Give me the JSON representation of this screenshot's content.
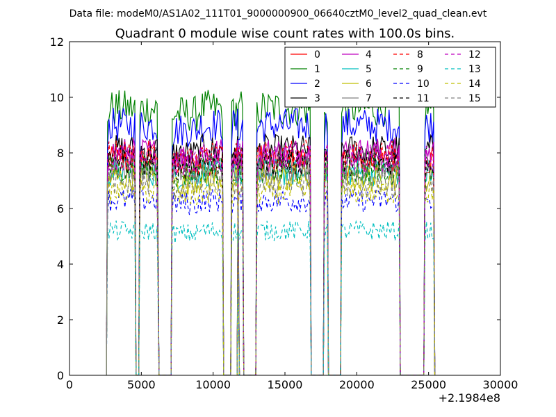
{
  "figure": {
    "suptitle": "Data file: modeM0/AS1A02_111T01_9000000900_06640cztM0_level2_quad_clean.evt",
    "title": "Quadrant 0 module wise count rates with 100.0s bins.",
    "offset_text": "+2.1984e8"
  },
  "chart_data": {
    "type": "line",
    "title": "Quadrant 0 module wise count rates with 100.0s bins.",
    "xlabel": "",
    "ylabel": "",
    "xlim": [
      0,
      30000
    ],
    "ylim": [
      0,
      12
    ],
    "x_offset": 219840000,
    "xticks": [
      0,
      5000,
      10000,
      15000,
      20000,
      25000,
      30000
    ],
    "yticks": [
      0,
      2,
      4,
      6,
      8,
      10,
      12
    ],
    "grid": false,
    "legend": {
      "placement": "top-right",
      "columns": 4
    },
    "segments": [
      {
        "start": 2650,
        "end": 4550
      },
      {
        "start": 4900,
        "end": 6150
      },
      {
        "start": 7150,
        "end": 10650
      },
      {
        "start": 11300,
        "end": 11750
      },
      {
        "start": 11750,
        "end": 12050
      },
      {
        "start": 13050,
        "end": 16750
      },
      {
        "start": 17750,
        "end": 17950
      },
      {
        "start": 18950,
        "end": 22950
      },
      {
        "start": 24750,
        "end": 25350
      }
    ],
    "series": [
      {
        "name": "0",
        "color": "#ff0000",
        "dash": "solid",
        "level": 7.7
      },
      {
        "name": "1",
        "color": "#008000",
        "dash": "solid",
        "level": 9.6
      },
      {
        "name": "2",
        "color": "#0000ff",
        "dash": "solid",
        "level": 9.0
      },
      {
        "name": "3",
        "color": "#000000",
        "dash": "solid",
        "level": 8.1
      },
      {
        "name": "4",
        "color": "#bf00bf",
        "dash": "solid",
        "level": 8.0
      },
      {
        "name": "5",
        "color": "#00bfbf",
        "dash": "solid",
        "level": 7.3
      },
      {
        "name": "6",
        "color": "#bfbf00",
        "dash": "solid",
        "level": 7.1
      },
      {
        "name": "7",
        "color": "#808080",
        "dash": "solid",
        "level": 7.5
      },
      {
        "name": "8",
        "color": "#ff0000",
        "dash": "dashed",
        "level": 7.9
      },
      {
        "name": "9",
        "color": "#008000",
        "dash": "dashed",
        "level": 7.4
      },
      {
        "name": "10",
        "color": "#0000ff",
        "dash": "dashed",
        "level": 6.3
      },
      {
        "name": "11",
        "color": "#000000",
        "dash": "dashed",
        "level": 7.7
      },
      {
        "name": "12",
        "color": "#bf00bf",
        "dash": "dashed",
        "level": 7.8
      },
      {
        "name": "13",
        "color": "#00bfbf",
        "dash": "dashed",
        "level": 5.2
      },
      {
        "name": "14",
        "color": "#bfbf00",
        "dash": "dashed",
        "level": 6.6
      },
      {
        "name": "15",
        "color": "#808080",
        "dash": "dashed",
        "level": 6.9
      }
    ]
  }
}
